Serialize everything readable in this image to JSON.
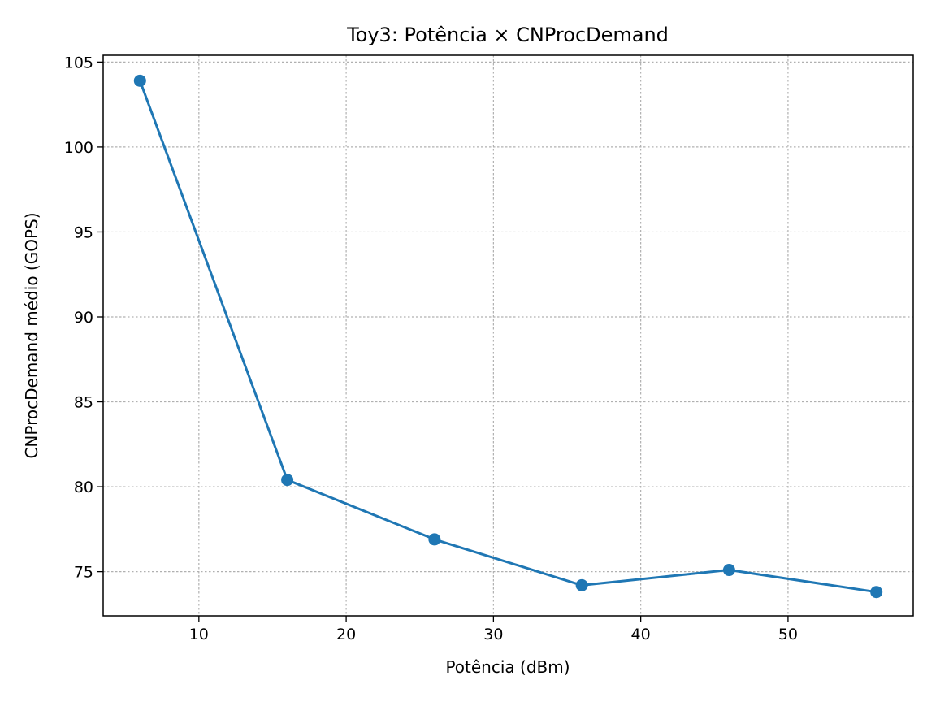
{
  "chart_data": {
    "type": "line",
    "title": "Toy3: Potência × CNProcDemand",
    "xlabel": "Potência (dBm)",
    "ylabel": "CNProcDemand médio (GOPS)",
    "xlim": [
      3.5,
      58.5
    ],
    "ylim": [
      72.4,
      105.4
    ],
    "xticks": [
      10,
      20,
      30,
      40,
      50
    ],
    "yticks": [
      75,
      80,
      85,
      90,
      95,
      100,
      105
    ],
    "grid": true,
    "series": [
      {
        "color": "#1f77b4",
        "marker": "circle",
        "x": [
          6,
          16,
          26,
          36,
          46,
          56
        ],
        "y": [
          103.9,
          80.4,
          76.9,
          74.2,
          75.1,
          73.8
        ]
      }
    ]
  }
}
